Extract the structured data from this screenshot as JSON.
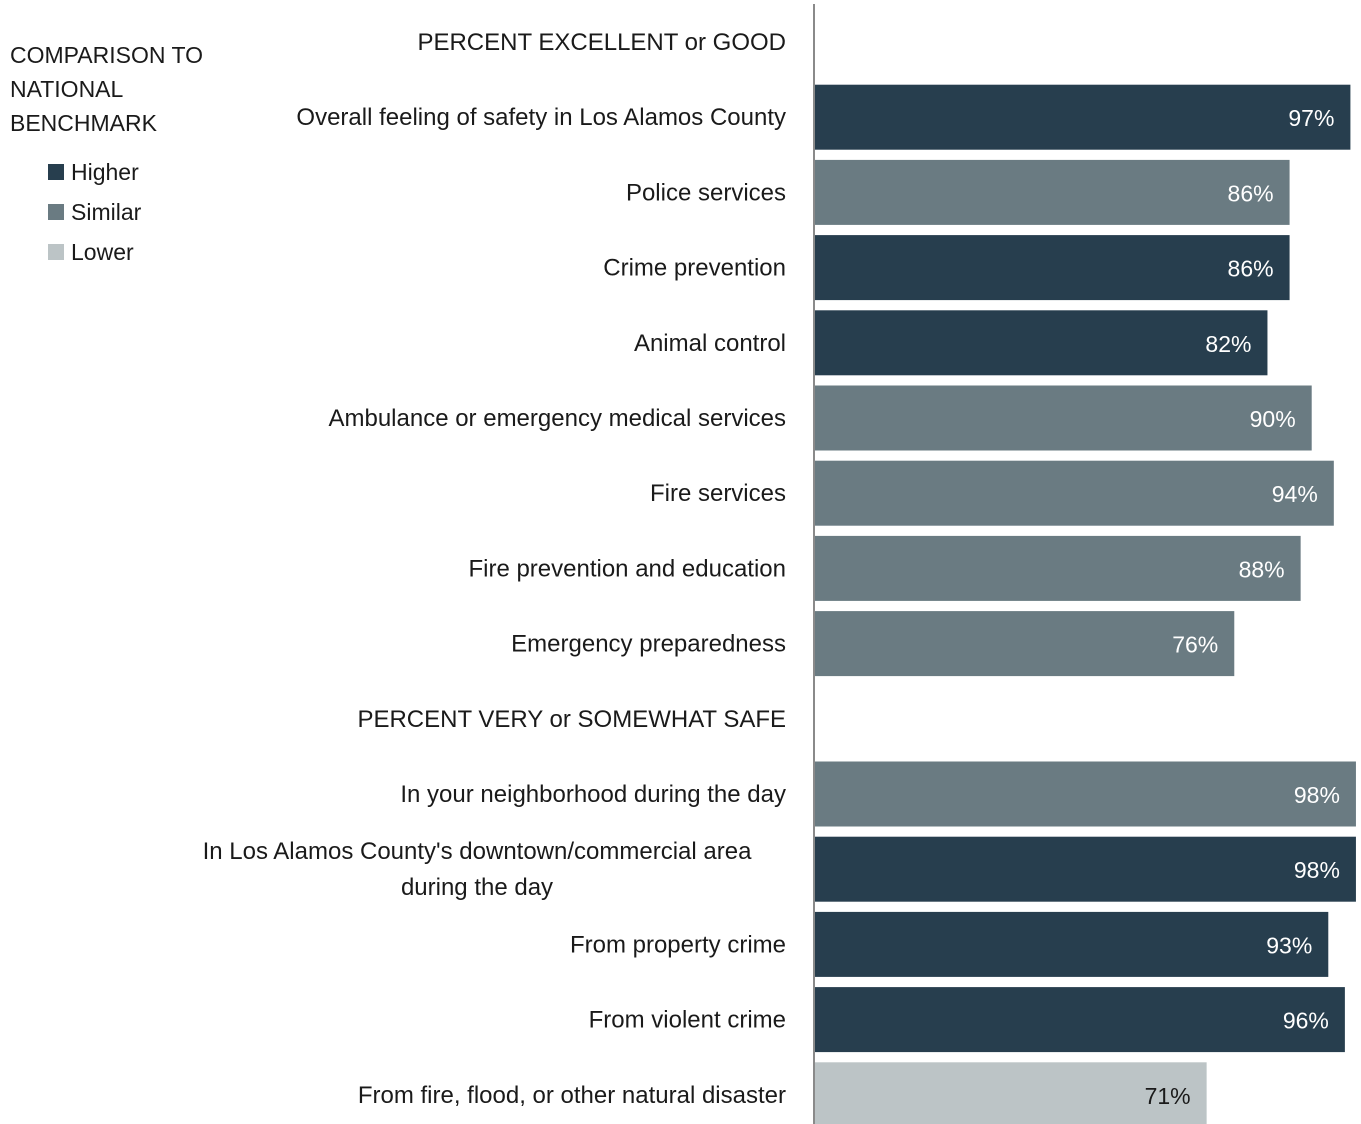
{
  "legend": {
    "title_lines": [
      "COMPARISON TO",
      "NATIONAL",
      "BENCHMARK"
    ],
    "items": [
      {
        "label": "Higher",
        "color": "#273e4e"
      },
      {
        "label": "Similar",
        "color": "#6a7b82"
      },
      {
        "label": "Lower",
        "color": "#bcc4c6"
      }
    ]
  },
  "chart_data": {
    "type": "bar",
    "orientation": "horizontal",
    "xlim": [
      0,
      100
    ],
    "grid": false,
    "legend_placement": "top-left",
    "value_format": "percent",
    "rows": [
      {
        "kind": "header",
        "label": "PERCENT EXCELLENT or GOOD"
      },
      {
        "kind": "bar",
        "label": "Overall feeling of safety in Los Alamos County",
        "value": 97,
        "display": "97%",
        "benchmark": "Higher"
      },
      {
        "kind": "bar",
        "label": "Police services",
        "value": 86,
        "display": "86%",
        "benchmark": "Similar"
      },
      {
        "kind": "bar",
        "label": "Crime prevention",
        "value": 86,
        "display": "86%",
        "benchmark": "Higher"
      },
      {
        "kind": "bar",
        "label": "Animal control",
        "value": 82,
        "display": "82%",
        "benchmark": "Higher"
      },
      {
        "kind": "bar",
        "label": "Ambulance or emergency medical services",
        "value": 90,
        "display": "90%",
        "benchmark": "Similar"
      },
      {
        "kind": "bar",
        "label": "Fire services",
        "value": 94,
        "display": "94%",
        "benchmark": "Similar"
      },
      {
        "kind": "bar",
        "label": "Fire prevention and education",
        "value": 88,
        "display": "88%",
        "benchmark": "Similar"
      },
      {
        "kind": "bar",
        "label": "Emergency preparedness",
        "value": 76,
        "display": "76%",
        "benchmark": "Similar"
      },
      {
        "kind": "header",
        "label": "PERCENT VERY or SOMEWHAT SAFE"
      },
      {
        "kind": "bar",
        "label": "In your neighborhood during the day",
        "value": 98,
        "display": "98%",
        "benchmark": "Similar"
      },
      {
        "kind": "bar",
        "label": [
          "In Los Alamos County's downtown/commercial area",
          "during the day"
        ],
        "value": 98,
        "display": "98%",
        "benchmark": "Higher"
      },
      {
        "kind": "bar",
        "label": "From property crime",
        "value": 93,
        "display": "93%",
        "benchmark": "Higher"
      },
      {
        "kind": "bar",
        "label": "From violent crime",
        "value": 96,
        "display": "96%",
        "benchmark": "Higher"
      },
      {
        "kind": "bar",
        "label": "From fire, flood, or other natural disaster",
        "value": 71,
        "display": "71%",
        "benchmark": "Lower"
      }
    ]
  }
}
